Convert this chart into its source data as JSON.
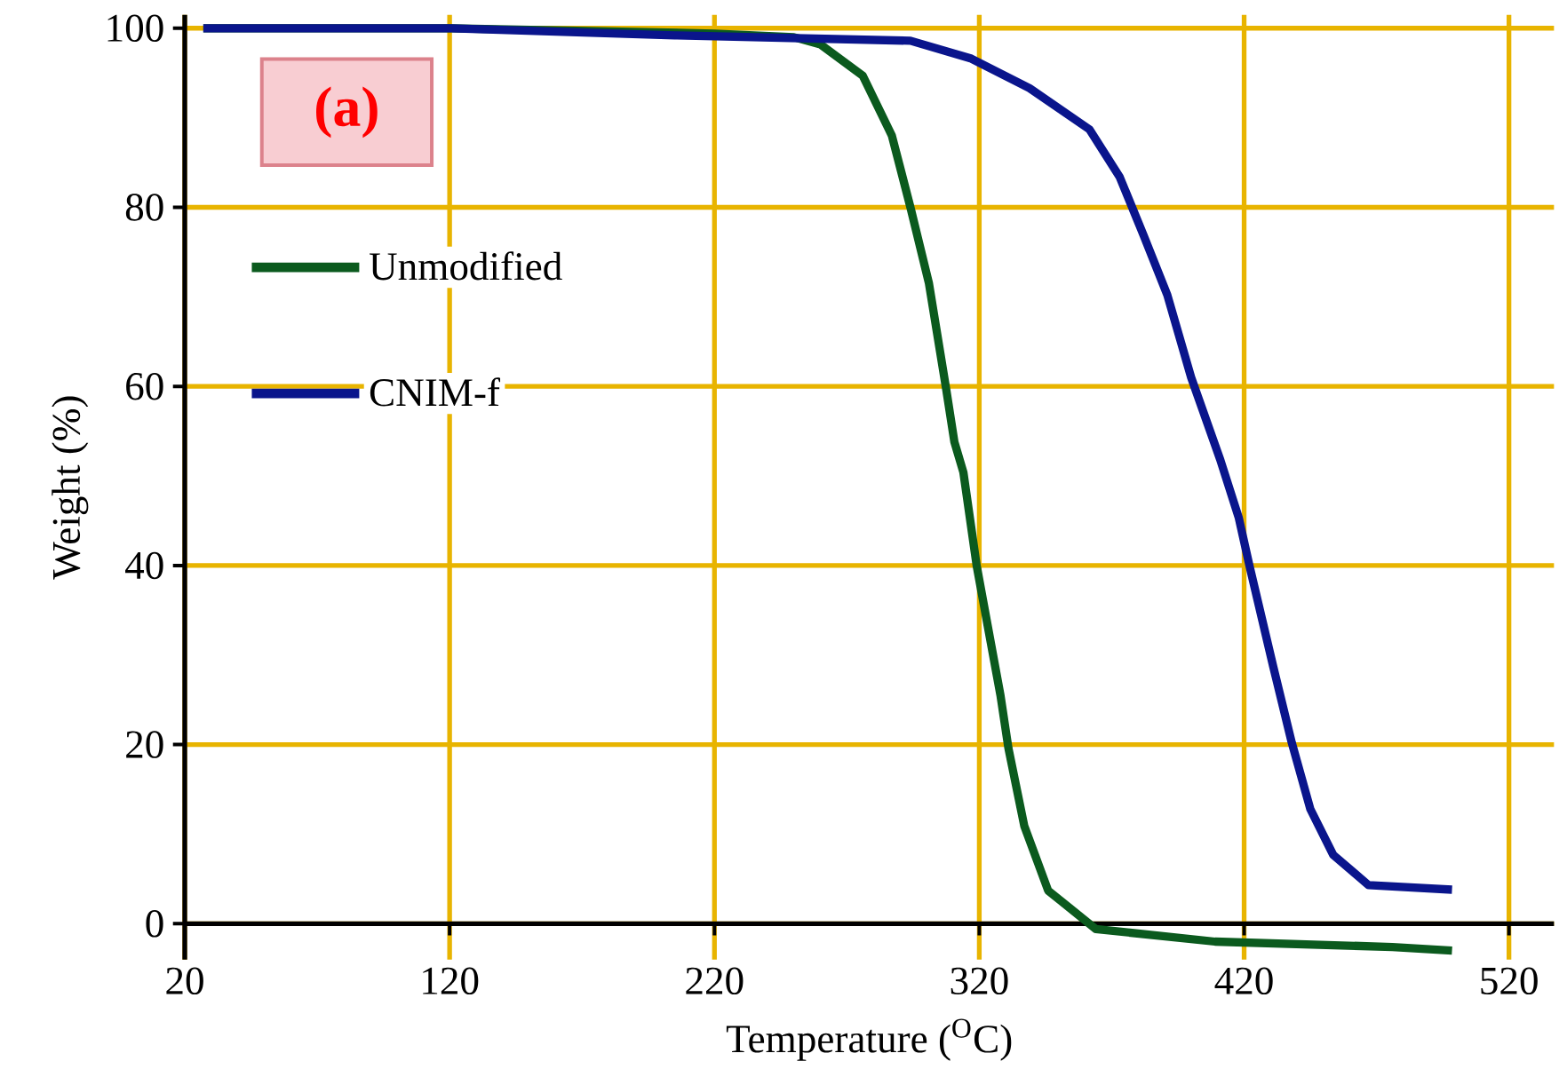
{
  "chart_data": {
    "type": "line",
    "xlabel": "Temperature ($^{O}$C)",
    "ylabel": "Weight (%)",
    "annotations": [
      "(a)"
    ],
    "xlim": [
      20,
      537
    ],
    "ylim": [
      -4,
      101.5
    ],
    "xticks": [
      20,
      120,
      220,
      320,
      420,
      520
    ],
    "yticks": [
      0,
      20,
      40,
      60,
      80,
      100
    ],
    "grid": true,
    "legend": "top left",
    "line_style": "solid",
    "series": [
      {
        "name": "Unmodified",
        "color": "#0b5a1e",
        "x": [
          27,
          120,
          220,
          250,
          260,
          276,
          287,
          294,
          301,
          307.5,
          310.6,
          314,
          319,
          328,
          331,
          337,
          346,
          364,
          409,
          476,
          498.5
        ],
        "values": [
          100,
          100,
          99.4,
          99,
          98.2,
          94.7,
          88,
          80,
          71.5,
          59.7,
          53.8,
          50.4,
          40,
          25.5,
          19.6,
          10.9,
          3.7,
          -0.6,
          -2,
          -2.6,
          -3
        ]
      },
      {
        "name": "CNIM-f",
        "color": "#0a158c",
        "x": [
          27,
          120,
          205,
          294,
          317,
          339,
          361.6,
          373,
          382,
          391,
          400,
          411,
          418,
          422,
          431,
          438,
          445,
          453.6,
          467,
          498.5
        ],
        "values": [
          100,
          100,
          99.2,
          98.6,
          96.6,
          93.3,
          88.7,
          83.4,
          76.9,
          70.2,
          61,
          51.8,
          45.3,
          40,
          28.7,
          20.2,
          12.8,
          7.7,
          4.3,
          3.8
        ]
      }
    ]
  }
}
